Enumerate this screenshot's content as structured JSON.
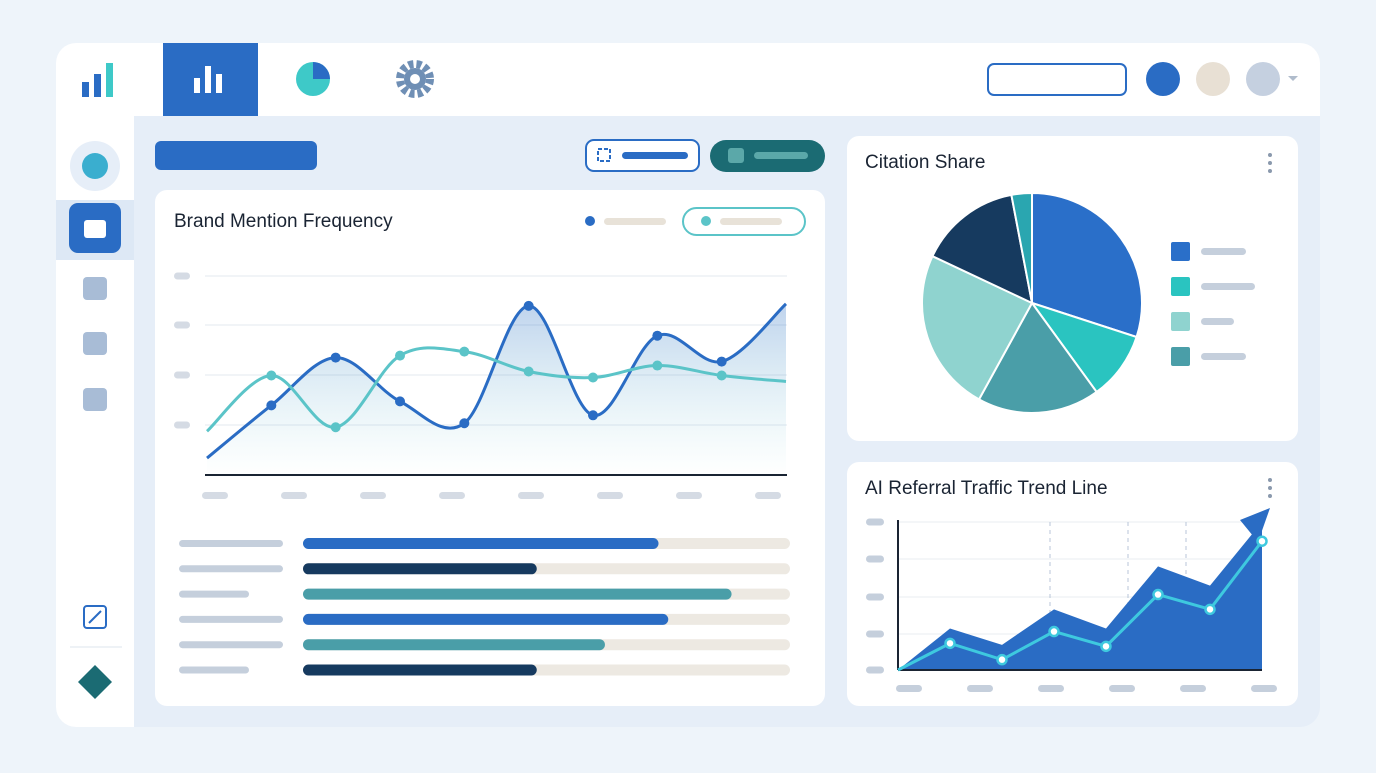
{
  "panels": {
    "line": {
      "title": "Brand Mention Frequency"
    },
    "pie": {
      "title": "Citation Share"
    },
    "trend": {
      "title": "AI Referral Traffic Trend Line"
    }
  },
  "chart_data": [
    {
      "type": "line",
      "categories": [
        null,
        null,
        null,
        null,
        null,
        null,
        null,
        null,
        null,
        null
      ],
      "ylim": [
        0,
        100
      ],
      "series": [
        {
          "color": "#2a6cc4",
          "values": [
            8.5,
            35,
            59,
            37,
            26,
            85,
            30,
            70,
            57,
            86
          ]
        },
        {
          "color": "#5bc4c8",
          "values": [
            22,
            50,
            24,
            60,
            62,
            52,
            49,
            55,
            50,
            47
          ]
        }
      ]
    },
    {
      "type": "pie",
      "values": [
        30,
        10,
        18,
        24,
        15,
        3
      ],
      "colors": [
        "#2a6fc9",
        "#2ac4c0",
        "#4a9ea8",
        "#8fd3cf",
        "#163a5f",
        "#2aa6b0"
      ]
    },
    {
      "type": "hbar",
      "values": [
        73,
        48,
        88,
        75,
        62,
        48
      ],
      "xlim": [
        0,
        100
      ],
      "colors": [
        "#2a6cc4",
        "#163a5f",
        "#4a9ea8",
        "#2a6cc4",
        "#4a9ea8",
        "#163a5f"
      ]
    },
    {
      "type": "area",
      "categories": [
        null,
        null,
        null,
        null,
        null,
        null,
        null,
        null
      ],
      "ylim": [
        0,
        100
      ],
      "series": [
        {
          "color": "#2a6cc4",
          "values": [
            0,
            28,
            17,
            41,
            28,
            70,
            57,
            100
          ]
        },
        {
          "color": "#3ec9df",
          "values": [
            0,
            18,
            7,
            26,
            16,
            51,
            41,
            87
          ]
        }
      ]
    }
  ]
}
